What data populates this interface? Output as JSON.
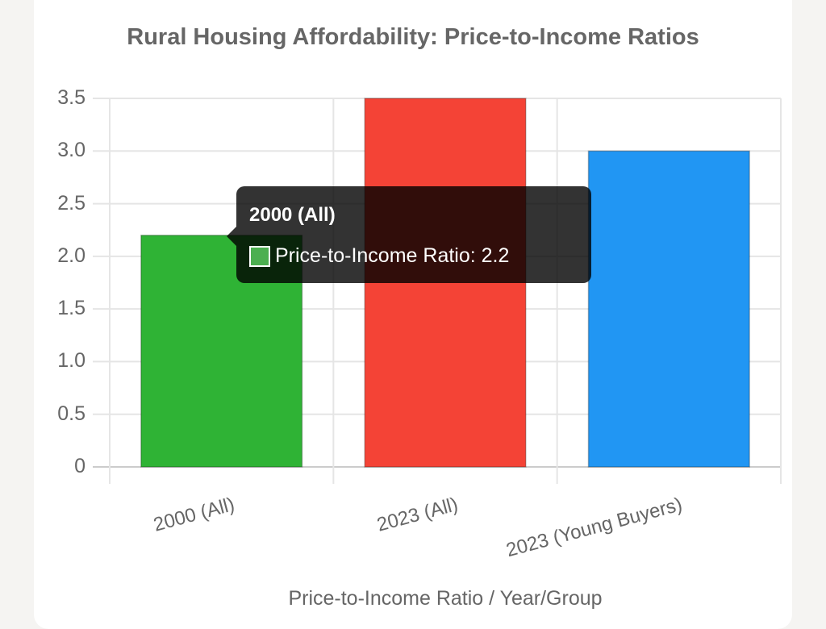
{
  "chart_data": {
    "type": "bar",
    "title": "Rural Housing Affordability: Price-to-Income Ratios",
    "categories": [
      "2000 (All)",
      "2023 (All)",
      "2023 (Young Buyers)"
    ],
    "series": [
      {
        "name": "Price-to-Income Ratio",
        "values": [
          2.2,
          3.5,
          3.0
        ]
      }
    ],
    "colors": [
      "#2fb335",
      "#f44336",
      "#2196f3"
    ],
    "xlabel": "Price-to-Income Ratio / Year/Group",
    "ylabel": "",
    "ylim": [
      0,
      3.5
    ],
    "yticks": [
      "0",
      "0.5",
      "1.0",
      "1.5",
      "2.0",
      "2.5",
      "3.0",
      "3.5"
    ],
    "grid": true
  },
  "tooltip": {
    "title": "2000 (All)",
    "body": "Price-to-Income Ratio: 2.2",
    "swatch_color": "#4caf50"
  }
}
